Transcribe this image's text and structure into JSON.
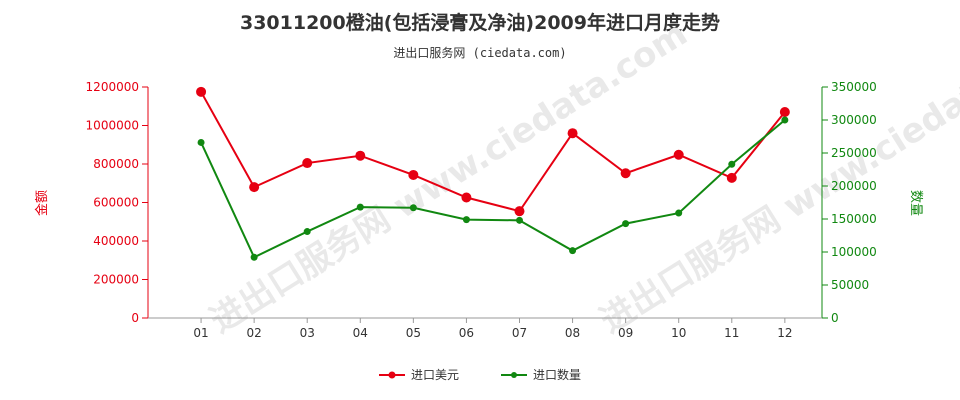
{
  "title": "33011200橙油(包括浸膏及净油)2009年进口月度走势",
  "subtitle": "进出口服务网 (ciedata.com)",
  "watermark": "进出口服务网 www.ciedata.com",
  "chart_data": {
    "type": "line",
    "categories": [
      "01",
      "02",
      "03",
      "04",
      "05",
      "06",
      "07",
      "08",
      "09",
      "10",
      "11",
      "12"
    ],
    "series": [
      {
        "name": "进口美元",
        "axis": "left",
        "color": "#e60012",
        "values": [
          1175000,
          680000,
          805000,
          843000,
          743000,
          626000,
          555000,
          960000,
          752000,
          848000,
          728000,
          1070000
        ]
      },
      {
        "name": "进口数量",
        "axis": "right",
        "color": "#118811",
        "values": [
          266000,
          92000,
          131000,
          168000,
          167000,
          149000,
          148000,
          102000,
          143000,
          159000,
          233000,
          300000
        ]
      }
    ],
    "ylabel_left": "金额",
    "ylabel_right": "数量",
    "ylim_left": [
      0,
      1200000
    ],
    "ylim_right": [
      0,
      350000
    ],
    "yticks_left": [
      "0",
      "200000",
      "400000",
      "600000",
      "800000",
      "1000000",
      "1200000"
    ],
    "yticks_right": [
      "0",
      "50000",
      "100000",
      "150000",
      "200000",
      "250000",
      "300000",
      "350000"
    ],
    "left_axis_color": "#e60012",
    "right_axis_color": "#118811",
    "grid": false,
    "legend_position": "bottom-center"
  }
}
